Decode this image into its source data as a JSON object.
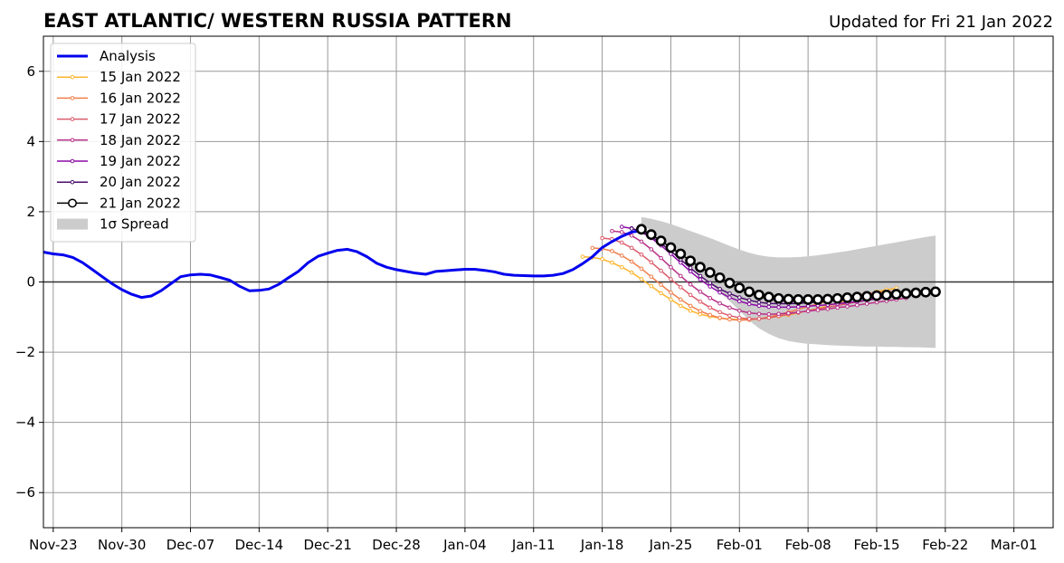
{
  "chart_data": {
    "type": "line",
    "title": "EAST ATLANTIC/ WESTERN RUSSIA PATTERN",
    "subtitle": "Updated for Fri 21 Jan 2022",
    "xlabel": "",
    "ylabel": "",
    "ylim": [
      -7,
      7
    ],
    "yticks": [
      -6,
      -4,
      -2,
      0,
      2,
      4,
      6
    ],
    "ytick_labels": [
      "−6",
      "−4",
      "−2",
      "0",
      "2",
      "4",
      "6"
    ],
    "xlim": [
      "2021-11-22",
      "2022-03-05"
    ],
    "xticks": [
      "2021-11-23",
      "2021-11-30",
      "2021-12-07",
      "2021-12-14",
      "2021-12-21",
      "2021-12-28",
      "2022-01-04",
      "2022-01-11",
      "2022-01-18",
      "2022-01-25",
      "2022-02-01",
      "2022-02-08",
      "2022-02-15",
      "2022-02-22",
      "2022-03-01"
    ],
    "xtick_labels": [
      "Nov-23",
      "Nov-30",
      "Dec-07",
      "Dec-14",
      "Dec-21",
      "Dec-28",
      "Jan-04",
      "Jan-11",
      "Jan-18",
      "Jan-25",
      "Feb-01",
      "Feb-08",
      "Feb-15",
      "Feb-22",
      "Mar-01"
    ],
    "grid": true,
    "legend_position": "top-left",
    "zero_line": 0,
    "analysis": {
      "name": "Analysis",
      "color": "#0000ee",
      "start": "2021-11-22",
      "values": [
        0.85,
        0.8,
        0.77,
        0.7,
        0.55,
        0.35,
        0.15,
        -0.05,
        -0.22,
        -0.35,
        -0.44,
        -0.4,
        -0.25,
        -0.05,
        0.15,
        0.2,
        0.22,
        0.2,
        0.13,
        0.05,
        -0.12,
        -0.25,
        -0.24,
        -0.2,
        -0.07,
        0.12,
        0.3,
        0.55,
        0.73,
        0.82,
        0.9,
        0.93,
        0.86,
        0.72,
        0.53,
        0.42,
        0.35,
        0.3,
        0.25,
        0.22,
        0.3,
        0.32,
        0.34,
        0.36,
        0.36,
        0.33,
        0.29,
        0.22,
        0.19,
        0.18,
        0.17,
        0.17,
        0.19,
        0.24,
        0.35,
        0.52,
        0.72,
        0.98,
        1.15,
        1.3,
        1.42,
        1.46
      ]
    },
    "forecasts": [
      {
        "name": "15 Jan 2022",
        "color": "#fdb42f",
        "start": "2022-01-16",
        "values": [
          0.72,
          0.7,
          0.65,
          0.55,
          0.42,
          0.27,
          0.08,
          -0.12,
          -0.32,
          -0.5,
          -0.68,
          -0.82,
          -0.92,
          -0.98,
          -1.03,
          -1.06,
          -1.07,
          -1.07,
          -1.05,
          -1.02,
          -0.98,
          -0.94,
          -0.88,
          -0.82,
          -0.75,
          -0.68,
          -0.6,
          -0.52,
          -0.44,
          -0.36,
          -0.28,
          -0.22,
          -0.18
        ]
      },
      {
        "name": "16 Jan 2022",
        "color": "#f07f4b",
        "start": "2022-01-17",
        "values": [
          0.97,
          0.95,
          0.88,
          0.75,
          0.58,
          0.38,
          0.15,
          -0.08,
          -0.3,
          -0.5,
          -0.68,
          -0.83,
          -0.94,
          -1.02,
          -1.07,
          -1.09,
          -1.08,
          -1.05,
          -1.0,
          -0.93,
          -0.86,
          -0.78,
          -0.7,
          -0.62,
          -0.55,
          -0.48,
          -0.42,
          -0.37,
          -0.33,
          -0.3,
          -0.28,
          -0.27
        ]
      },
      {
        "name": "17 Jan 2022",
        "color": "#dc5b6b",
        "start": "2022-01-18",
        "values": [
          1.25,
          1.22,
          1.12,
          0.97,
          0.78,
          0.56,
          0.32,
          0.08,
          -0.15,
          -0.37,
          -0.56,
          -0.73,
          -0.86,
          -0.96,
          -1.02,
          -1.05,
          -1.05,
          -1.02,
          -0.97,
          -0.92,
          -0.87,
          -0.82,
          -0.77,
          -0.72,
          -0.67,
          -0.62,
          -0.57,
          -0.52,
          -0.47,
          -0.42,
          -0.38,
          -0.35
        ]
      },
      {
        "name": "18 Jan 2022",
        "color": "#b83289",
        "start": "2022-01-19",
        "values": [
          1.45,
          1.42,
          1.32,
          1.15,
          0.93,
          0.68,
          0.42,
          0.17,
          -0.07,
          -0.28,
          -0.46,
          -0.61,
          -0.73,
          -0.82,
          -0.88,
          -0.91,
          -0.92,
          -0.91,
          -0.89,
          -0.86,
          -0.83,
          -0.8,
          -0.77,
          -0.73,
          -0.7,
          -0.66,
          -0.62,
          -0.58,
          -0.54,
          -0.5,
          -0.46
        ]
      },
      {
        "name": "19 Jan 2022",
        "color": "#8b0aa5",
        "start": "2022-01-20",
        "values": [
          1.57,
          1.53,
          1.42,
          1.25,
          1.04,
          0.8,
          0.55,
          0.3,
          0.07,
          -0.13,
          -0.3,
          -0.44,
          -0.55,
          -0.63,
          -0.68,
          -0.71,
          -0.72,
          -0.72,
          -0.71,
          -0.69,
          -0.67,
          -0.65,
          -0.62,
          -0.59,
          -0.56,
          -0.52,
          -0.48,
          -0.44,
          -0.4,
          -0.36
        ]
      },
      {
        "name": "20 Jan 2022",
        "color": "#4b0c6b",
        "start": "2022-01-21",
        "values": [
          1.52,
          1.45,
          1.3,
          1.1,
          0.88,
          0.64,
          0.4,
          0.17,
          -0.03,
          -0.2,
          -0.33,
          -0.44,
          -0.52,
          -0.58,
          -0.61,
          -0.62,
          -0.62,
          -0.61,
          -0.59,
          -0.57,
          -0.54,
          -0.51,
          -0.48,
          -0.45,
          -0.42,
          -0.39,
          -0.36,
          -0.33,
          -0.3
        ]
      }
    ],
    "latest": {
      "name": "21 Jan 2022",
      "color": "#000000",
      "start": "2022-01-22",
      "values": [
        1.5,
        1.35,
        1.17,
        0.98,
        0.8,
        0.6,
        0.42,
        0.27,
        0.12,
        -0.03,
        -0.17,
        -0.28,
        -0.37,
        -0.43,
        -0.47,
        -0.49,
        -0.5,
        -0.5,
        -0.5,
        -0.49,
        -0.47,
        -0.45,
        -0.43,
        -0.41,
        -0.39,
        -0.37,
        -0.35,
        -0.33,
        -0.31,
        -0.29,
        -0.28
      ]
    },
    "spread": {
      "name": "1σ Spread",
      "color": "#cccccc",
      "start": "2022-01-22",
      "upper": [
        1.85,
        1.8,
        1.73,
        1.65,
        1.55,
        1.45,
        1.35,
        1.25,
        1.14,
        1.03,
        0.92,
        0.83,
        0.76,
        0.72,
        0.7,
        0.7,
        0.71,
        0.73,
        0.76,
        0.8,
        0.84,
        0.88,
        0.93,
        0.98,
        1.03,
        1.08,
        1.13,
        1.18,
        1.23,
        1.28,
        1.32
      ],
      "lower": [
        1.65,
        1.45,
        1.2,
        0.95,
        0.7,
        0.45,
        0.2,
        -0.05,
        -0.3,
        -0.55,
        -0.82,
        -1.1,
        -1.32,
        -1.48,
        -1.6,
        -1.68,
        -1.73,
        -1.76,
        -1.78,
        -1.8,
        -1.81,
        -1.82,
        -1.83,
        -1.84,
        -1.84,
        -1.85,
        -1.85,
        -1.86,
        -1.86,
        -1.87,
        -1.88
      ]
    }
  }
}
